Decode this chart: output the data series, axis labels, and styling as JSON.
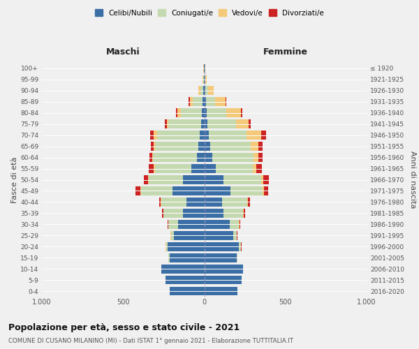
{
  "age_groups": [
    "0-4",
    "5-9",
    "10-14",
    "15-19",
    "20-24",
    "25-29",
    "30-34",
    "35-39",
    "40-44",
    "45-49",
    "50-54",
    "55-59",
    "60-64",
    "65-69",
    "70-74",
    "75-79",
    "80-84",
    "85-89",
    "90-94",
    "95-99",
    "100+"
  ],
  "birth_years": [
    "2016-2020",
    "2011-2015",
    "2006-2010",
    "2001-2005",
    "1996-2000",
    "1991-1995",
    "1986-1990",
    "1981-1985",
    "1976-1980",
    "1971-1975",
    "1966-1970",
    "1961-1965",
    "1956-1960",
    "1951-1955",
    "1946-1950",
    "1941-1945",
    "1936-1940",
    "1931-1935",
    "1926-1930",
    "1921-1925",
    "≤ 1920"
  ],
  "males": {
    "celibi": [
      215,
      240,
      265,
      215,
      225,
      185,
      160,
      130,
      110,
      195,
      130,
      80,
      45,
      35,
      30,
      20,
      15,
      10,
      5,
      2,
      2
    ],
    "coniugati": [
      0,
      0,
      0,
      5,
      10,
      20,
      60,
      120,
      155,
      195,
      210,
      225,
      270,
      270,
      260,
      200,
      130,
      60,
      18,
      5,
      2
    ],
    "vedovi": [
      0,
      0,
      0,
      1,
      2,
      2,
      2,
      2,
      3,
      5,
      5,
      5,
      5,
      8,
      20,
      12,
      20,
      20,
      12,
      3,
      1
    ],
    "divorziati": [
      0,
      0,
      0,
      1,
      2,
      3,
      5,
      10,
      10,
      30,
      25,
      30,
      18,
      18,
      25,
      10,
      8,
      5,
      2,
      0,
      0
    ]
  },
  "females": {
    "nubili": [
      205,
      230,
      240,
      200,
      215,
      180,
      155,
      120,
      110,
      160,
      120,
      70,
      50,
      35,
      30,
      20,
      15,
      10,
      5,
      2,
      2
    ],
    "coniugate": [
      0,
      0,
      0,
      5,
      10,
      20,
      60,
      120,
      155,
      200,
      230,
      230,
      255,
      250,
      230,
      175,
      120,
      55,
      18,
      5,
      2
    ],
    "vedove": [
      0,
      0,
      0,
      0,
      1,
      1,
      2,
      3,
      5,
      8,
      12,
      20,
      30,
      50,
      90,
      80,
      90,
      65,
      35,
      8,
      2
    ],
    "divorziate": [
      0,
      0,
      0,
      1,
      2,
      3,
      5,
      10,
      12,
      25,
      35,
      35,
      22,
      22,
      30,
      12,
      10,
      5,
      2,
      0,
      0
    ]
  },
  "colors": {
    "celibi": "#3a6ea5",
    "coniugati": "#c5d9b0",
    "vedovi": "#f5c97a",
    "divorziati": "#cc2222"
  },
  "title": "Popolazione per età, sesso e stato civile - 2021",
  "subtitle": "COMUNE DI CUSANO MILANINO (MI) - Dati ISTAT 1° gennaio 2021 - Elaborazione TUTTITALIA.IT",
  "xlabel_left": "Maschi",
  "xlabel_right": "Femmine",
  "ylabel_left": "Fasce di età",
  "ylabel_right": "Anni di nascita",
  "xlim": 1000,
  "background_color": "#f0f0f0"
}
